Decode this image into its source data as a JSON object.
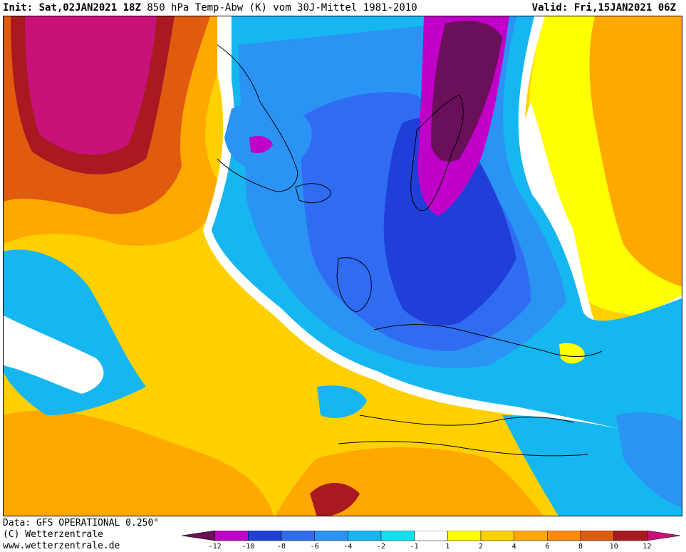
{
  "header": {
    "init_label": "Init:",
    "init_date": "Sat,02JAN2021",
    "init_hour": "18Z",
    "title": "850 hPa Temp-Abw (K) vom 30J-Mittel 1981-2010",
    "valid_label": "Valid:",
    "valid_date": "Fri,15JAN2021",
    "valid_hour": "06Z"
  },
  "footer": {
    "data_source": "Data: GFS OPERATIONAL 0.250°",
    "copyright": "(C) Wetterzentrale",
    "website": "www.wetterzentrale.de"
  },
  "legend": {
    "labels": [
      "-12",
      "-10",
      "-8",
      "-6",
      "-4",
      "-2",
      "-1",
      "1",
      "2",
      "4",
      "6",
      "8",
      "10",
      "12"
    ],
    "colors": [
      "#6a0f5a",
      "#c000c8",
      "#1f3fd8",
      "#2f6cf2",
      "#2a93f4",
      "#16b6f0",
      "#0fe0f0",
      "#ffffff",
      "#ffff00",
      "#ffd000",
      "#ffa800",
      "#ff8a00",
      "#e05a10",
      "#a81a20",
      "#c8127a"
    ]
  },
  "map": {
    "region": "North Atlantic and Europe",
    "colors": {
      "very_warm": "#c8127a",
      "dark_warm": "#a81a20",
      "warm": "#e05a10",
      "orange": "#ffa800",
      "yellow": "#ffd000",
      "light_yellow": "#ffff00",
      "neutral": "#ffffff",
      "light_cold": "#16b6f0",
      "cold": "#2a93f4",
      "colder": "#2f6cf2",
      "very_cold": "#1f3fd8",
      "magenta_cold": "#c000c8",
      "extreme_cold": "#6a0f5a"
    }
  }
}
